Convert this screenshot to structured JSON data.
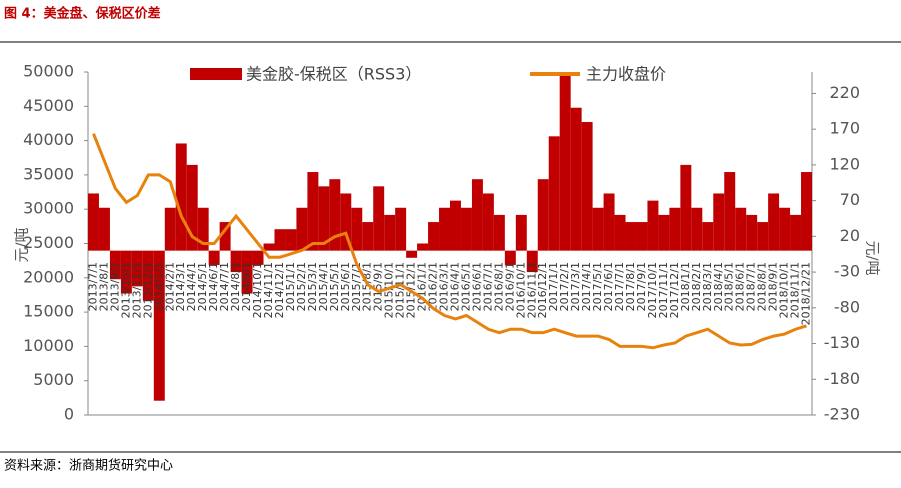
{
  "header": {
    "title": "图 4：美金盘、保税区价差"
  },
  "chart_data": {
    "type": "bar-line",
    "y_label": "元/吨",
    "y2_label": "元/吨",
    "categories": [
      "2013/7/1",
      "2013/8/1",
      "2013/9/1",
      "2013/10/1",
      "2013/11/1",
      "2013/12/1",
      "2014/1/1",
      "2014/2/1",
      "2014/3/1",
      "2014/4/1",
      "2014/5/1",
      "2014/6/1",
      "2014/7/1",
      "2014/8/1",
      "2014/9/1",
      "2014/10/1",
      "2014/11/1",
      "2014/12/1",
      "2015/1/1",
      "2015/2/1",
      "2015/3/1",
      "2015/4/1",
      "2015/5/1",
      "2015/6/1",
      "2015/7/1",
      "2015/8/1",
      "2015/9/1",
      "2015/10/1",
      "2015/11/1",
      "2015/12/1",
      "2016/1/1",
      "2016/2/1",
      "2016/3/1",
      "2016/4/1",
      "2016/5/1",
      "2016/6/1",
      "2016/7/1",
      "2016/8/1",
      "2016/9/1",
      "2016/10/1",
      "2016/11/1",
      "2016/12/1",
      "2017/1/1",
      "2017/2/1",
      "2017/3/1",
      "2017/4/1",
      "2017/5/1",
      "2017/6/1",
      "2017/7/1",
      "2017/8/1",
      "2017/9/1",
      "2017/10/1",
      "2017/11/1",
      "2017/12/1",
      "2018/1/1",
      "2018/2/1",
      "2018/3/1",
      "2018/4/1",
      "2018/5/1",
      "2018/6/1",
      "2018/7/1",
      "2018/8/1",
      "2018/9/1",
      "2018/10/1",
      "2018/11/1",
      "2018/12/21"
    ],
    "series": [
      {
        "name": "美金胶-保税区（RSS3）",
        "color": "#C00000",
        "axis": "y2",
        "kind": "bar",
        "values": [
          80,
          60,
          -40,
          -60,
          -50,
          -70,
          -210,
          60,
          150,
          120,
          60,
          -20,
          40,
          -30,
          -60,
          -20,
          10,
          30,
          30,
          60,
          110,
          90,
          100,
          80,
          60,
          40,
          90,
          50,
          60,
          -10,
          10,
          40,
          60,
          70,
          60,
          100,
          80,
          50,
          -20,
          50,
          -30,
          100,
          160,
          250,
          200,
          180,
          60,
          80,
          50,
          40,
          40,
          70,
          50,
          60,
          120,
          60,
          40,
          80,
          110,
          60,
          50,
          40,
          80,
          60,
          50,
          110
        ]
      },
      {
        "name": "主力收盘价",
        "color": "#E8820C",
        "kind": "line",
        "values": [
          41000,
          37000,
          33000,
          31000,
          32000,
          35000,
          35000,
          34000,
          29000,
          26000,
          25000,
          25000,
          27000,
          29000,
          27000,
          25000,
          23000,
          23000,
          23500,
          24000,
          25000,
          25000,
          26000,
          26500,
          22000,
          19000,
          18000,
          18500,
          19000,
          18000,
          17000,
          15500,
          14500,
          14000,
          14500,
          13500,
          12500,
          12000,
          12500,
          12500,
          12000,
          12000,
          12500,
          12000,
          11500,
          11500,
          11500,
          11000,
          10000,
          10000,
          10000,
          9800,
          10200,
          10500,
          11500,
          12000,
          12500,
          11500,
          10500,
          10200,
          10300,
          11000,
          11500,
          11800,
          12500,
          13000
        ]
      }
    ],
    "ylim": [
      0,
      50000
    ],
    "yticks": [
      0,
      5000,
      10000,
      15000,
      20000,
      25000,
      30000,
      35000,
      40000,
      45000,
      50000
    ],
    "y2lim": [
      -230,
      250
    ],
    "y2ticks": [
      -230,
      -180,
      -130,
      -80,
      -30,
      20,
      70,
      120,
      170,
      220
    ]
  },
  "footer": {
    "source": "资料来源：浙商期货研究中心"
  }
}
